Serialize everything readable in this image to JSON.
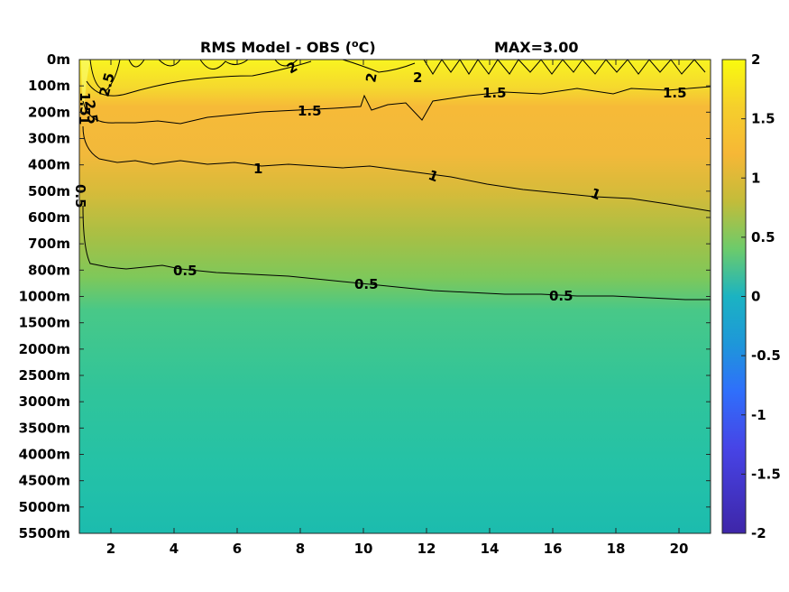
{
  "chart_data": {
    "type": "heatmap",
    "title_left": "RMS Model - OBS (",
    "title_unit_super": "o",
    "title_unit_tail": "C)",
    "title_right": "MAX=3.00",
    "y_tick_labels": [
      "0m",
      "100m",
      "200m",
      "300m",
      "400m",
      "500m",
      "600m",
      "700m",
      "800m",
      "1000m",
      "1500m",
      "2000m",
      "2500m",
      "3000m",
      "3500m",
      "4000m",
      "4500m",
      "5000m",
      "5500m"
    ],
    "x_tick_values": [
      2,
      4,
      6,
      8,
      10,
      12,
      14,
      16,
      18,
      20
    ],
    "xlim": [
      1,
      21
    ],
    "colorbar": {
      "range": [
        -2,
        2
      ],
      "tick_values": [
        2,
        1.5,
        1,
        0.5,
        0,
        -0.5,
        -1,
        -1.5,
        -2
      ],
      "tick_labels": [
        "2",
        "1.5",
        "1",
        "0.5",
        "0",
        "-0.5",
        "-1",
        "-1.5",
        "-2"
      ]
    },
    "depth_profile": [
      {
        "depth": "0m",
        "value": 2.0
      },
      {
        "depth": "100m",
        "value": 1.95
      },
      {
        "depth": "200m",
        "value": 1.55
      },
      {
        "depth": "300m",
        "value": 1.35
      },
      {
        "depth": "400m",
        "value": 1.1
      },
      {
        "depth": "500m",
        "value": 0.95
      },
      {
        "depth": "600m",
        "value": 0.85
      },
      {
        "depth": "700m",
        "value": 0.75
      },
      {
        "depth": "800m",
        "value": 0.6
      },
      {
        "depth": "1000m",
        "value": 0.5
      },
      {
        "depth": "1500m",
        "value": 0.45
      },
      {
        "depth": "2000m",
        "value": 0.42
      },
      {
        "depth": "3000m",
        "value": 0.38
      },
      {
        "depth": "4000m",
        "value": 0.35
      },
      {
        "depth": "5500m",
        "value": 0.3
      }
    ],
    "contours": [
      {
        "level": 2.5,
        "labels": [
          "2.5",
          "2.5"
        ]
      },
      {
        "level": 2,
        "labels": [
          "2",
          "2",
          "2"
        ]
      },
      {
        "level": 1.5,
        "labels": [
          "1.5",
          "1.5",
          "1.5",
          "1.5"
        ]
      },
      {
        "level": 1,
        "labels": [
          "1",
          "1",
          "1",
          "1"
        ]
      },
      {
        "level": 0.5,
        "labels": [
          "0.5",
          "0.5",
          "0.5",
          "0.5"
        ]
      }
    ],
    "colors": {
      "colormap": [
        "#3e26a8",
        "#4744e6",
        "#2f6ffb",
        "#1e97d9",
        "#1bb3c2",
        "#2ac39f",
        "#6ccb6b",
        "#c2bc3a",
        "#f6b736",
        "#f5cf2c",
        "#f9fb0e"
      ]
    }
  }
}
